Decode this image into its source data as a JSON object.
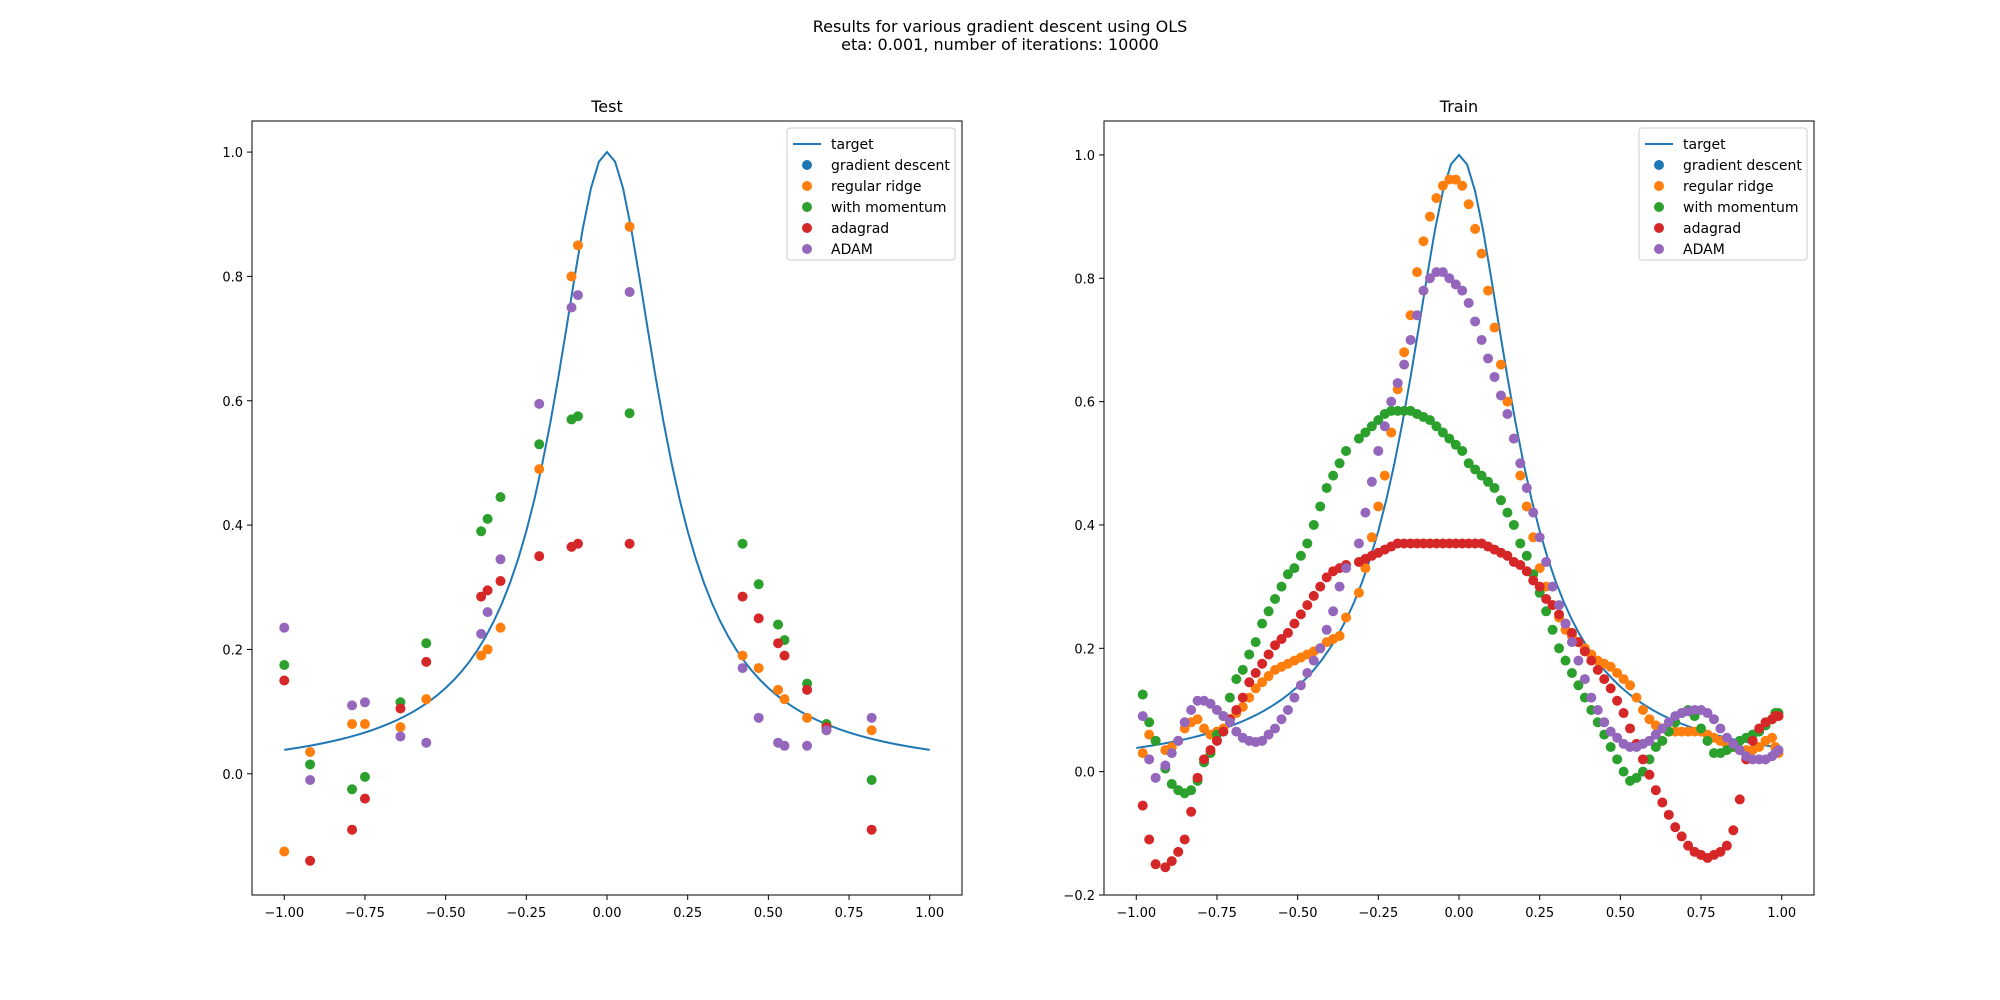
{
  "figure": {
    "suptitle_line1": "Results for various gradient descent using OLS",
    "suptitle_line2": "eta: 0.001, number of iterations: 10000"
  },
  "colors": {
    "target": "#1f77b4",
    "gradient descent": "#1f77b4",
    "regular ridge": "#ff7f0e",
    "with momentum": "#2ca02c",
    "adagrad": "#d62728",
    "ADAM": "#9467bd"
  },
  "chart_data": [
    {
      "type": "scatter",
      "title": "Test",
      "xlabel": "",
      "ylabel": "",
      "xlim": [
        -1.1,
        1.1
      ],
      "ylim": [
        -0.195,
        1.05
      ],
      "xticks": [
        -1.0,
        -0.75,
        -0.5,
        -0.25,
        0.0,
        0.25,
        0.5,
        0.75,
        1.0
      ],
      "xtick_labels": [
        "−1.00",
        "−0.75",
        "−0.50",
        "−0.25",
        "0.00",
        "0.25",
        "0.50",
        "0.75",
        "1.00"
      ],
      "yticks": [
        0.0,
        0.2,
        0.4,
        0.6,
        0.8,
        1.0
      ],
      "ytick_labels": [
        "0.0",
        "0.2",
        "0.4",
        "0.6",
        "0.8",
        "1.0"
      ],
      "legend_position": "top-right",
      "legend": [
        "target",
        "gradient descent",
        "regular ridge",
        "with momentum",
        "adagrad",
        "ADAM"
      ],
      "line": {
        "name": "target",
        "function": "1/(1+25x^2)",
        "x_range": [
          -1.0,
          1.0
        ]
      },
      "x": [
        -1.0,
        -0.92,
        -0.79,
        -0.75,
        -0.64,
        -0.56,
        -0.39,
        -0.37,
        -0.33,
        -0.21,
        -0.11,
        -0.09,
        0.07,
        0.42,
        0.47,
        0.53,
        0.55,
        0.62,
        0.68,
        0.82
      ],
      "series": [
        {
          "name": "regular ridge",
          "values": [
            -0.125,
            0.035,
            0.08,
            0.08,
            0.075,
            0.12,
            0.19,
            0.2,
            0.235,
            0.49,
            0.8,
            0.85,
            0.88,
            0.19,
            0.17,
            0.135,
            0.12,
            0.09,
            0.07,
            0.07
          ]
        },
        {
          "name": "with momentum",
          "values": [
            0.175,
            0.015,
            -0.025,
            -0.005,
            0.115,
            0.21,
            0.39,
            0.41,
            0.445,
            0.53,
            0.57,
            0.575,
            0.58,
            0.37,
            0.305,
            0.24,
            0.215,
            0.145,
            0.08,
            -0.01
          ]
        },
        {
          "name": "adagrad",
          "values": [
            0.15,
            -0.14,
            -0.09,
            -0.04,
            0.105,
            0.18,
            0.285,
            0.295,
            0.31,
            0.35,
            0.365,
            0.37,
            0.37,
            0.285,
            0.25,
            0.21,
            0.19,
            0.135,
            0.075,
            -0.09
          ]
        },
        {
          "name": "ADAM",
          "values": [
            0.235,
            -0.01,
            0.11,
            0.115,
            0.06,
            0.05,
            0.225,
            0.26,
            0.345,
            0.595,
            0.75,
            0.77,
            0.775,
            0.17,
            0.09,
            0.05,
            0.045,
            0.045,
            0.07,
            0.09
          ]
        }
      ]
    },
    {
      "type": "scatter",
      "title": "Train",
      "xlabel": "",
      "ylabel": "",
      "xlim": [
        -1.1,
        1.1
      ],
      "ylim": [
        -0.2,
        1.055
      ],
      "xticks": [
        -1.0,
        -0.75,
        -0.5,
        -0.25,
        0.0,
        0.25,
        0.5,
        0.75,
        1.0
      ],
      "xtick_labels": [
        "−1.00",
        "−0.75",
        "−0.50",
        "−0.25",
        "0.00",
        "0.25",
        "0.50",
        "0.75",
        "1.00"
      ],
      "yticks": [
        -0.2,
        0.0,
        0.2,
        0.4,
        0.6,
        0.8,
        1.0
      ],
      "ytick_labels": [
        "−0.2",
        "0.0",
        "0.2",
        "0.4",
        "0.6",
        "0.8",
        "1.0"
      ],
      "legend_position": "top-right",
      "legend": [
        "target",
        "gradient descent",
        "regular ridge",
        "with momentum",
        "adagrad",
        "ADAM"
      ],
      "line": {
        "name": "target",
        "function": "1/(1+25x^2)",
        "x_range": [
          -1.0,
          1.0
        ]
      },
      "x": [
        -0.98,
        -0.96,
        -0.94,
        -0.91,
        -0.89,
        -0.87,
        -0.85,
        -0.83,
        -0.81,
        -0.79,
        -0.77,
        -0.75,
        -0.73,
        -0.71,
        -0.69,
        -0.67,
        -0.65,
        -0.63,
        -0.61,
        -0.59,
        -0.57,
        -0.55,
        -0.53,
        -0.51,
        -0.49,
        -0.47,
        -0.45,
        -0.43,
        -0.41,
        -0.39,
        -0.37,
        -0.35,
        -0.31,
        -0.29,
        -0.27,
        -0.25,
        -0.23,
        -0.21,
        -0.19,
        -0.17,
        -0.15,
        -0.13,
        -0.11,
        -0.09,
        -0.07,
        -0.05,
        -0.03,
        -0.01,
        0.01,
        0.03,
        0.05,
        0.07,
        0.09,
        0.11,
        0.13,
        0.15,
        0.17,
        0.19,
        0.21,
        0.23,
        0.25,
        0.27,
        0.29,
        0.31,
        0.33,
        0.35,
        0.37,
        0.39,
        0.41,
        0.43,
        0.45,
        0.47,
        0.49,
        0.51,
        0.53,
        0.55,
        0.57,
        0.59,
        0.61,
        0.63,
        0.65,
        0.67,
        0.69,
        0.71,
        0.73,
        0.75,
        0.77,
        0.79,
        0.81,
        0.83,
        0.85,
        0.87,
        0.89,
        0.91,
        0.93,
        0.95,
        0.97,
        0.98,
        0.99
      ],
      "series": [
        {
          "name": "regular ridge",
          "values": [
            0.03,
            0.06,
            0.05,
            0.035,
            0.04,
            0.05,
            0.07,
            0.08,
            0.085,
            0.07,
            0.06,
            0.065,
            0.07,
            0.085,
            0.095,
            0.105,
            0.12,
            0.135,
            0.145,
            0.155,
            0.165,
            0.17,
            0.175,
            0.18,
            0.185,
            0.19,
            0.195,
            0.2,
            0.21,
            0.215,
            0.22,
            0.25,
            0.29,
            0.33,
            0.38,
            0.43,
            0.48,
            0.55,
            0.62,
            0.68,
            0.74,
            0.81,
            0.86,
            0.9,
            0.93,
            0.95,
            0.96,
            0.96,
            0.95,
            0.92,
            0.88,
            0.84,
            0.78,
            0.72,
            0.66,
            0.6,
            0.54,
            0.48,
            0.43,
            0.38,
            0.33,
            0.3,
            0.27,
            0.25,
            0.23,
            0.22,
            0.21,
            0.2,
            0.19,
            0.18,
            0.175,
            0.17,
            0.16,
            0.15,
            0.14,
            0.12,
            0.1,
            0.085,
            0.075,
            0.07,
            0.065,
            0.065,
            0.065,
            0.065,
            0.065,
            0.065,
            0.06,
            0.055,
            0.05,
            0.045,
            0.04,
            0.035,
            0.035,
            0.035,
            0.04,
            0.05,
            0.055,
            0.04,
            0.03
          ]
        },
        {
          "name": "with momentum",
          "values": [
            0.125,
            0.08,
            0.05,
            0.005,
            -0.02,
            -0.03,
            -0.035,
            -0.03,
            -0.015,
            0.015,
            0.03,
            0.06,
            0.09,
            0.12,
            0.15,
            0.165,
            0.19,
            0.21,
            0.24,
            0.26,
            0.28,
            0.3,
            0.32,
            0.33,
            0.35,
            0.37,
            0.4,
            0.43,
            0.46,
            0.48,
            0.5,
            0.52,
            0.54,
            0.55,
            0.56,
            0.57,
            0.58,
            0.585,
            0.585,
            0.585,
            0.585,
            0.58,
            0.575,
            0.57,
            0.56,
            0.55,
            0.54,
            0.53,
            0.52,
            0.5,
            0.49,
            0.48,
            0.47,
            0.46,
            0.44,
            0.42,
            0.4,
            0.37,
            0.35,
            0.32,
            0.29,
            0.26,
            0.23,
            0.2,
            0.18,
            0.16,
            0.14,
            0.12,
            0.1,
            0.08,
            0.06,
            0.04,
            0.02,
            0.0,
            -0.015,
            -0.01,
            0.0,
            0.02,
            0.04,
            0.05,
            0.065,
            0.08,
            0.095,
            0.1,
            0.09,
            0.07,
            0.05,
            0.03,
            0.03,
            0.035,
            0.04,
            0.05,
            0.055,
            0.06,
            0.065,
            0.075,
            0.085,
            0.095,
            0.095
          ]
        },
        {
          "name": "adagrad",
          "values": [
            -0.055,
            -0.11,
            -0.15,
            -0.155,
            -0.145,
            -0.13,
            -0.11,
            -0.065,
            -0.01,
            0.02,
            0.035,
            0.05,
            0.065,
            0.085,
            0.1,
            0.12,
            0.145,
            0.16,
            0.175,
            0.19,
            0.205,
            0.215,
            0.225,
            0.24,
            0.255,
            0.27,
            0.285,
            0.3,
            0.315,
            0.325,
            0.33,
            0.335,
            0.34,
            0.345,
            0.35,
            0.355,
            0.36,
            0.365,
            0.37,
            0.37,
            0.37,
            0.37,
            0.37,
            0.37,
            0.37,
            0.37,
            0.37,
            0.37,
            0.37,
            0.37,
            0.37,
            0.37,
            0.365,
            0.36,
            0.355,
            0.35,
            0.34,
            0.335,
            0.325,
            0.31,
            0.3,
            0.28,
            0.27,
            0.255,
            0.24,
            0.225,
            0.21,
            0.195,
            0.18,
            0.165,
            0.15,
            0.135,
            0.115,
            0.095,
            0.07,
            0.045,
            0.02,
            -0.005,
            -0.03,
            -0.05,
            -0.07,
            -0.09,
            -0.105,
            -0.12,
            -0.13,
            -0.135,
            -0.14,
            -0.135,
            -0.13,
            -0.12,
            -0.095,
            -0.045,
            0.02,
            0.05,
            0.07,
            0.08,
            0.085,
            0.09,
            0.09
          ]
        },
        {
          "name": "ADAM",
          "values": [
            0.09,
            0.02,
            -0.01,
            0.01,
            0.03,
            0.05,
            0.08,
            0.1,
            0.115,
            0.115,
            0.11,
            0.1,
            0.09,
            0.08,
            0.065,
            0.055,
            0.05,
            0.048,
            0.05,
            0.06,
            0.07,
            0.085,
            0.1,
            0.12,
            0.14,
            0.16,
            0.18,
            0.2,
            0.23,
            0.26,
            0.3,
            0.33,
            0.37,
            0.42,
            0.47,
            0.52,
            0.56,
            0.6,
            0.63,
            0.66,
            0.7,
            0.74,
            0.78,
            0.8,
            0.81,
            0.81,
            0.8,
            0.79,
            0.78,
            0.76,
            0.73,
            0.7,
            0.67,
            0.64,
            0.61,
            0.58,
            0.54,
            0.5,
            0.46,
            0.42,
            0.38,
            0.34,
            0.3,
            0.27,
            0.24,
            0.21,
            0.18,
            0.15,
            0.12,
            0.1,
            0.08,
            0.065,
            0.055,
            0.045,
            0.04,
            0.04,
            0.045,
            0.05,
            0.06,
            0.07,
            0.08,
            0.09,
            0.095,
            0.098,
            0.1,
            0.1,
            0.095,
            0.085,
            0.07,
            0.055,
            0.045,
            0.035,
            0.025,
            0.02,
            0.02,
            0.02,
            0.025,
            0.03,
            0.035
          ]
        }
      ]
    }
  ]
}
